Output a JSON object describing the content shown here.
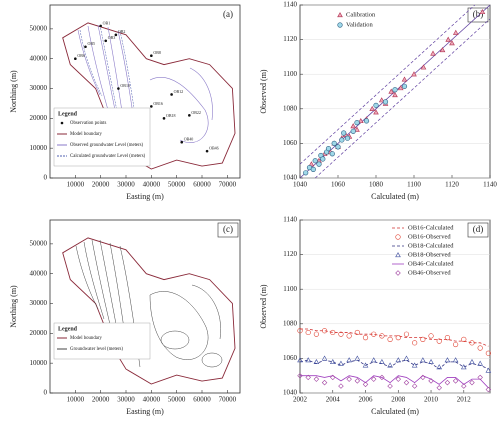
{
  "chart_data": [
    {
      "type": "map",
      "label": "(a)",
      "xlabel": "Easting (m)",
      "ylabel": "Northing (m)",
      "xlim": [
        0,
        75000
      ],
      "ylim": [
        0,
        58000
      ],
      "xticks": [
        10000,
        20000,
        30000,
        40000,
        50000,
        60000,
        70000
      ],
      "yticks": [
        0,
        10000,
        20000,
        30000,
        40000,
        50000
      ],
      "legend_title": "Legend",
      "legend": [
        "Observation points",
        "Model boundary",
        "Observed groundwater Level (meters)",
        "Calculated groundwater Level (meters)"
      ],
      "points": [
        {
          "name": "OB1",
          "x": 20000,
          "y": 51000
        },
        {
          "name": "OB2",
          "x": 26000,
          "y": 48000
        },
        {
          "name": "OB3",
          "x": 22000,
          "y": 46000
        },
        {
          "name": "OB5",
          "x": 14000,
          "y": 44000
        },
        {
          "name": "OB6",
          "x": 10000,
          "y": 40000
        },
        {
          "name": "OB8",
          "x": 40000,
          "y": 41000
        },
        {
          "name": "OB10",
          "x": 27000,
          "y": 30000
        },
        {
          "name": "OB12",
          "x": 48000,
          "y": 28000
        },
        {
          "name": "OB16",
          "x": 40000,
          "y": 24000
        },
        {
          "name": "OB18",
          "x": 45000,
          "y": 20000
        },
        {
          "name": "OB22",
          "x": 55000,
          "y": 21000
        },
        {
          "name": "OB36",
          "x": 30000,
          "y": 18000
        },
        {
          "name": "OB40",
          "x": 52000,
          "y": 12000
        },
        {
          "name": "OB46",
          "x": 62000,
          "y": 9000
        }
      ]
    },
    {
      "type": "scatter",
      "label": "(b)",
      "xlabel": "Calculated (m)",
      "ylabel": "Observed (m)",
      "xlim": [
        1040,
        1140
      ],
      "ylim": [
        1040,
        1140
      ],
      "xticks": [
        1040,
        1060,
        1080,
        1100,
        1120,
        1140
      ],
      "yticks": [
        1040,
        1060,
        1080,
        1100,
        1120,
        1140
      ],
      "grid": true,
      "series": [
        {
          "name": "Calibration",
          "color": "#b03050",
          "fill": "#eea8b8",
          "marker": "triangle",
          "x": [
            1046,
            1050,
            1053,
            1056,
            1058,
            1060,
            1062,
            1064,
            1066,
            1068,
            1070,
            1072,
            1075,
            1078,
            1080,
            1083,
            1085,
            1088,
            1090,
            1093,
            1095,
            1100,
            1105,
            1110,
            1115,
            1118,
            1120,
            1122,
            1136
          ],
          "values": [
            1048,
            1050,
            1054,
            1055,
            1060,
            1058,
            1063,
            1065,
            1064,
            1070,
            1068,
            1073,
            1074,
            1080,
            1078,
            1085,
            1083,
            1090,
            1088,
            1092,
            1097,
            1100,
            1104,
            1112,
            1114,
            1120,
            1118,
            1124,
            1136
          ]
        },
        {
          "name": "Validation",
          "color": "#2a5d80",
          "fill": "#9fd8e8",
          "marker": "circle",
          "x": [
            1043,
            1045,
            1047,
            1048,
            1050,
            1051,
            1052,
            1054,
            1055,
            1057,
            1058,
            1060,
            1062,
            1063,
            1065,
            1068,
            1070,
            1075,
            1080,
            1085,
            1090,
            1095
          ],
          "values": [
            1043,
            1046,
            1045,
            1050,
            1048,
            1053,
            1051,
            1055,
            1057,
            1054,
            1060,
            1058,
            1062,
            1066,
            1063,
            1067,
            1072,
            1073,
            1082,
            1084,
            1091,
            1093
          ]
        }
      ]
    },
    {
      "type": "map",
      "label": "(c)",
      "xlabel": "Easting (m)",
      "ylabel": "Northing (m)",
      "xlim": [
        0,
        75000
      ],
      "ylim": [
        0,
        58000
      ],
      "xticks": [
        10000,
        20000,
        30000,
        40000,
        50000,
        60000,
        70000
      ],
      "yticks": [
        0,
        10000,
        20000,
        30000,
        40000,
        50000
      ],
      "legend_title": "Legend",
      "legend": [
        "Model boundary",
        "Groundwater level (meters)"
      ],
      "points": []
    },
    {
      "type": "line",
      "label": "(d)",
      "xlabel": "Calculated (m)",
      "ylabel": "Observed (m)",
      "xlim": [
        2002,
        2013.6
      ],
      "ylim": [
        1040,
        1140
      ],
      "xticks": [
        2002,
        2004,
        2006,
        2008,
        2010,
        2012
      ],
      "yticks": [
        1040,
        1060,
        1080,
        1100,
        1120,
        1140
      ],
      "grid": true,
      "x": [
        2002,
        2002.5,
        2003,
        2003.5,
        2004,
        2004.5,
        2005,
        2005.5,
        2006,
        2006.5,
        2007,
        2007.5,
        2008,
        2008.5,
        2009,
        2009.5,
        2010,
        2010.5,
        2011,
        2011.5,
        2012,
        2012.5,
        2013,
        2013.5
      ],
      "series": [
        {
          "name": "OB16-Calculated",
          "color": "#d03030",
          "style": "dashed",
          "values": [
            1077,
            1077,
            1076,
            1076,
            1075,
            1075,
            1075,
            1074,
            1074,
            1074,
            1073,
            1073,
            1073,
            1072,
            1072,
            1072,
            1071,
            1071,
            1071,
            1070,
            1070,
            1069,
            1069,
            1067
          ]
        },
        {
          "name": "OB16-Observed",
          "color": "#e04030",
          "style": "circle",
          "values": [
            1076,
            1075,
            1074,
            1076,
            1075,
            1074,
            1073,
            1075,
            1072,
            1074,
            1073,
            1071,
            1072,
            1074,
            1069,
            1071,
            1073,
            1070,
            1072,
            1068,
            1071,
            1069,
            1066,
            1063
          ]
        },
        {
          "name": "OB18-Calculated",
          "color": "#303080",
          "style": "dashed",
          "values": [
            1058,
            1059,
            1057,
            1059,
            1058,
            1056,
            1058,
            1059,
            1056,
            1058,
            1057,
            1055,
            1058,
            1059,
            1056,
            1058,
            1057,
            1054,
            1058,
            1058,
            1055,
            1057,
            1056,
            1054
          ]
        },
        {
          "name": "OB18-Observed",
          "color": "#4050a0",
          "style": "triangle",
          "values": [
            1059,
            1059,
            1058,
            1060,
            1058,
            1057,
            1059,
            1060,
            1056,
            1059,
            1058,
            1056,
            1059,
            1060,
            1056,
            1059,
            1058,
            1055,
            1059,
            1059,
            1055,
            1058,
            1057,
            1053
          ]
        },
        {
          "name": "OB46-Calculated",
          "color": "#a040c0",
          "style": "solid",
          "values": [
            1050,
            1050,
            1050,
            1049,
            1050,
            1047,
            1050,
            1049,
            1046,
            1050,
            1049,
            1046,
            1050,
            1049,
            1046,
            1050,
            1048,
            1045,
            1049,
            1049,
            1045,
            1048,
            1048,
            1043
          ]
        },
        {
          "name": "OB46-Observed",
          "color": "#a040a0",
          "style": "diamond",
          "values": [
            1050,
            1049,
            1048,
            1046,
            1049,
            1044,
            1048,
            1047,
            1045,
            1048,
            1049,
            1044,
            1048,
            1046,
            1044,
            1049,
            1047,
            1043,
            1046,
            1047,
            1044,
            1046,
            1049,
            1042
          ]
        }
      ]
    }
  ]
}
